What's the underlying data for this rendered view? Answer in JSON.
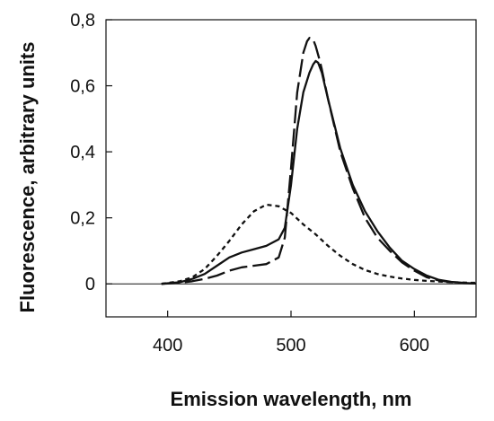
{
  "chart_data": {
    "type": "line",
    "title": "",
    "xlabel": "Emission wavelength, nm",
    "ylabel": "Fluorescence, arbitrary units",
    "xlim": [
      350,
      650
    ],
    "ylim": [
      -0.1,
      0.8
    ],
    "x_ticks": [
      400,
      500,
      600
    ],
    "x_tick_labels": [
      "400",
      "500",
      "600"
    ],
    "y_ticks": [
      0,
      0.2,
      0.4,
      0.6,
      0.8
    ],
    "y_tick_labels": [
      "0",
      "0,2",
      "0,4",
      "0,6",
      "0,8"
    ],
    "zero_line": true,
    "grid": false,
    "legend": "none",
    "series": [
      {
        "style": "solid",
        "color": "#111111",
        "x": [
          395,
          410,
          420,
          430,
          440,
          450,
          460,
          470,
          480,
          490,
          495,
          500,
          505,
          510,
          515,
          518,
          520,
          522,
          525,
          530,
          540,
          550,
          560,
          570,
          580,
          590,
          600,
          610,
          620,
          630,
          640,
          650
        ],
        "y": [
          0,
          0.005,
          0.015,
          0.03,
          0.055,
          0.08,
          0.095,
          0.105,
          0.115,
          0.135,
          0.17,
          0.3,
          0.47,
          0.58,
          0.64,
          0.665,
          0.675,
          0.67,
          0.64,
          0.56,
          0.41,
          0.3,
          0.22,
          0.16,
          0.11,
          0.07,
          0.045,
          0.025,
          0.012,
          0.006,
          0.003,
          0.001
        ]
      },
      {
        "style": "long-dash",
        "color": "#111111",
        "x": [
          395,
          410,
          420,
          430,
          440,
          450,
          460,
          470,
          480,
          490,
          495,
          500,
          505,
          510,
          513,
          515,
          518,
          520,
          523,
          525,
          530,
          540,
          550,
          560,
          570,
          580,
          590,
          600,
          610,
          620,
          630,
          640,
          650
        ],
        "y": [
          0,
          0.003,
          0.008,
          0.015,
          0.025,
          0.04,
          0.05,
          0.055,
          0.06,
          0.08,
          0.14,
          0.35,
          0.58,
          0.7,
          0.735,
          0.745,
          0.74,
          0.72,
          0.68,
          0.65,
          0.56,
          0.4,
          0.29,
          0.2,
          0.14,
          0.1,
          0.065,
          0.04,
          0.02,
          0.01,
          0.005,
          0.002,
          0.001
        ]
      },
      {
        "style": "short-dash",
        "color": "#111111",
        "x": [
          395,
          410,
          420,
          430,
          440,
          450,
          460,
          470,
          480,
          490,
          500,
          510,
          520,
          530,
          540,
          550,
          560,
          570,
          580,
          590,
          600,
          610,
          620,
          630,
          640,
          650
        ],
        "y": [
          0,
          0.008,
          0.02,
          0.045,
          0.085,
          0.13,
          0.18,
          0.22,
          0.24,
          0.235,
          0.215,
          0.18,
          0.15,
          0.115,
          0.085,
          0.06,
          0.042,
          0.03,
          0.022,
          0.016,
          0.012,
          0.009,
          0.007,
          0.005,
          0.004,
          0.003
        ]
      }
    ]
  }
}
